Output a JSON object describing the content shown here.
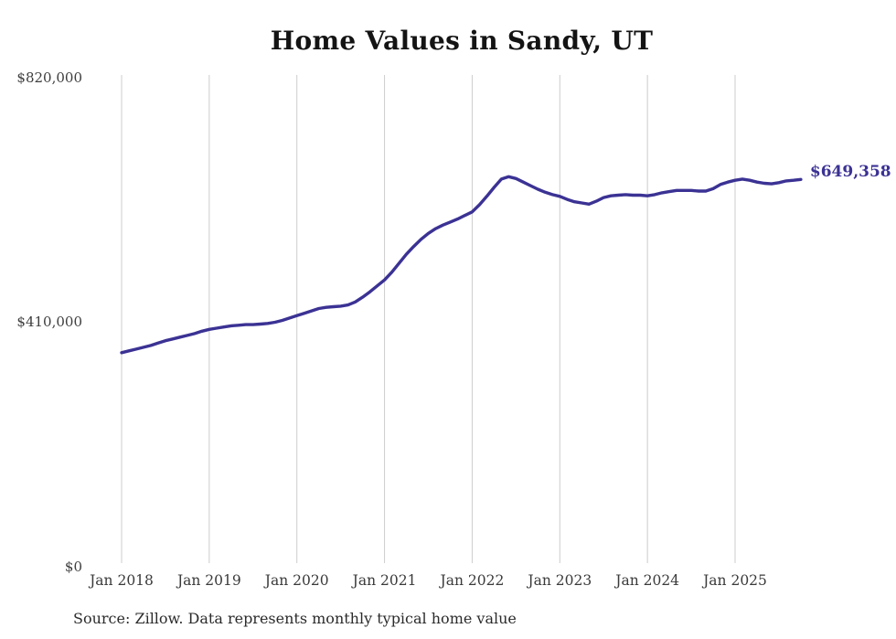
{
  "chart_data": {
    "type": "line",
    "title": "Home Values in Sandy, UT",
    "source_note": "Source: Zillow. Data represents monthly typical home value",
    "end_label": "$649,358",
    "end_value": 649358,
    "line_color": "#3b3294",
    "grid_color": "#cccccc",
    "axis_text_color": "#3a3a3a",
    "title_color": "#141414",
    "background_color": "#ffffff",
    "ylim": [
      0,
      820000
    ],
    "grid": "vertical-only",
    "legend": "none",
    "ylabel": "",
    "xlabel": "",
    "y_ticks": [
      {
        "label": "$0",
        "value": 0
      },
      {
        "label": "$410,000",
        "value": 410000
      },
      {
        "label": "$820,000",
        "value": 820000
      }
    ],
    "x_ticks": [
      {
        "label": "Jan 2018",
        "month_index": 0
      },
      {
        "label": "Jan 2019",
        "month_index": 12
      },
      {
        "label": "Jan 2020",
        "month_index": 24
      },
      {
        "label": "Jan 2021",
        "month_index": 36
      },
      {
        "label": "Jan 2022",
        "month_index": 48
      },
      {
        "label": "Jan 2023",
        "month_index": 60
      },
      {
        "label": "Jan 2024",
        "month_index": 72
      },
      {
        "label": "Jan 2025",
        "month_index": 84
      }
    ],
    "x_unit": "month",
    "months": [
      "2018-01",
      "2018-02",
      "2018-03",
      "2018-04",
      "2018-05",
      "2018-06",
      "2018-07",
      "2018-08",
      "2018-09",
      "2018-10",
      "2018-11",
      "2018-12",
      "2019-01",
      "2019-02",
      "2019-03",
      "2019-04",
      "2019-05",
      "2019-06",
      "2019-07",
      "2019-08",
      "2019-09",
      "2019-10",
      "2019-11",
      "2019-12",
      "2020-01",
      "2020-02",
      "2020-03",
      "2020-04",
      "2020-05",
      "2020-06",
      "2020-07",
      "2020-08",
      "2020-09",
      "2020-10",
      "2020-11",
      "2020-12",
      "2021-01",
      "2021-02",
      "2021-03",
      "2021-04",
      "2021-05",
      "2021-06",
      "2021-07",
      "2021-08",
      "2021-09",
      "2021-10",
      "2021-11",
      "2021-12",
      "2022-01",
      "2022-02",
      "2022-03",
      "2022-04",
      "2022-05",
      "2022-06",
      "2022-07",
      "2022-08",
      "2022-09",
      "2022-10",
      "2022-11",
      "2022-12",
      "2023-01",
      "2023-02",
      "2023-03",
      "2023-04",
      "2023-05",
      "2023-06",
      "2023-07",
      "2023-08",
      "2023-09",
      "2023-10",
      "2023-11",
      "2023-12",
      "2024-01",
      "2024-02",
      "2024-03",
      "2024-04",
      "2024-05",
      "2024-06",
      "2024-07",
      "2024-08",
      "2024-09",
      "2024-10",
      "2024-11",
      "2024-12",
      "2025-01",
      "2025-02",
      "2025-03",
      "2025-04",
      "2025-05",
      "2025-06",
      "2025-07",
      "2025-08",
      "2025-09",
      "2025-10"
    ],
    "values": [
      359000,
      362000,
      365000,
      368000,
      371000,
      375000,
      379000,
      382000,
      385000,
      388000,
      391000,
      395000,
      398000,
      400000,
      402000,
      404000,
      405000,
      406000,
      406000,
      407000,
      408000,
      410000,
      413000,
      417000,
      421000,
      425000,
      429000,
      433000,
      435000,
      436000,
      437000,
      439000,
      444000,
      452000,
      461000,
      471000,
      481000,
      494000,
      509000,
      524000,
      537000,
      549000,
      559000,
      567000,
      573000,
      578000,
      583000,
      589000,
      595000,
      607000,
      621000,
      636000,
      650000,
      654000,
      651000,
      645000,
      639000,
      633000,
      628000,
      624000,
      621000,
      616000,
      612000,
      610000,
      608000,
      613000,
      619000,
      622000,
      623000,
      624000,
      623000,
      623000,
      622000,
      624000,
      627000,
      629000,
      631000,
      631000,
      631000,
      630000,
      630000,
      634000,
      641000,
      645000,
      648000,
      650000,
      648000,
      645000,
      643000,
      642000,
      644000,
      647000,
      648000,
      649358
    ]
  }
}
